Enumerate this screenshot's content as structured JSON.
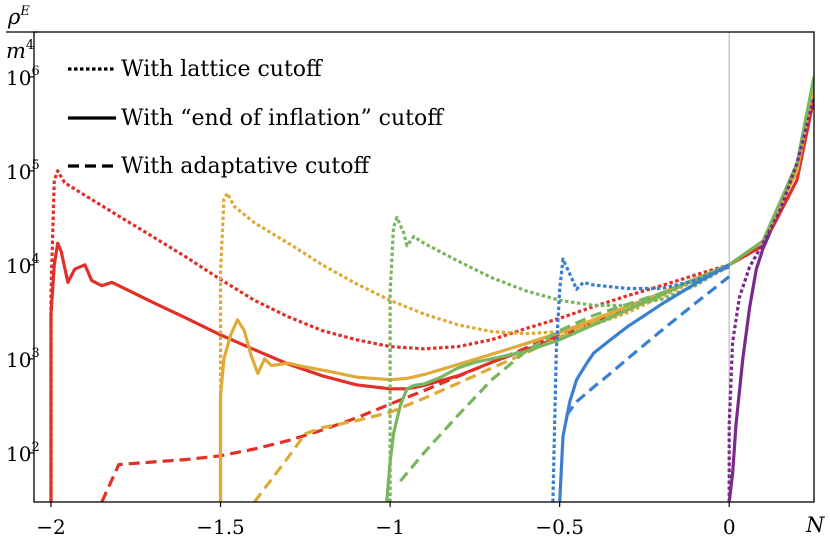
{
  "chart_data": {
    "type": "line",
    "title": "",
    "xlabel": "N",
    "ylabel": "ρ^E / m^4",
    "ylabel_parts": {
      "num_base": "ρ",
      "num_sup": "E",
      "den_base": "m",
      "den_sup": "4"
    },
    "yscale": "log",
    "xlim": [
      -2.05,
      0.25
    ],
    "ylim": [
      30,
      3000000
    ],
    "xticks": [
      {
        "value": -2,
        "label": "−2"
      },
      {
        "value": -1.5,
        "label": "−1.5"
      },
      {
        "value": -1,
        "label": "−1"
      },
      {
        "value": -0.5,
        "label": "−0.5"
      },
      {
        "value": 0,
        "label": "0"
      }
    ],
    "yticks": [
      {
        "value": 100,
        "base": "10",
        "exp": "2"
      },
      {
        "value": 1000,
        "base": "10",
        "exp": "3"
      },
      {
        "value": 10000,
        "base": "10",
        "exp": "4"
      },
      {
        "value": 100000,
        "base": "10",
        "exp": "5"
      },
      {
        "value": 1000000,
        "base": "10",
        "exp": "6"
      }
    ],
    "vline_x": 0,
    "legend": {
      "position": "top-left",
      "entries": [
        {
          "label": "With lattice cutoff",
          "style": "dotted"
        },
        {
          "label": "With “end of inflation” cutoff",
          "style": "solid"
        },
        {
          "label": "With adaptative cutoff",
          "style": "dashed"
        }
      ]
    },
    "series": [
      {
        "name": "red lattice cutoff",
        "color": "#e03028",
        "style": "dotted",
        "points": [
          [
            -2.0,
            30
          ],
          [
            -2.0,
            5000
          ],
          [
            -1.99,
            80000
          ],
          [
            -1.98,
            100000
          ],
          [
            -1.96,
            75000
          ],
          [
            -1.9,
            55000
          ],
          [
            -1.8,
            33000
          ],
          [
            -1.7,
            20000
          ],
          [
            -1.6,
            12000
          ],
          [
            -1.5,
            7000
          ],
          [
            -1.4,
            4200
          ],
          [
            -1.3,
            2800
          ],
          [
            -1.2,
            2000
          ],
          [
            -1.1,
            1600
          ],
          [
            -1.0,
            1350
          ],
          [
            -0.9,
            1280
          ],
          [
            -0.8,
            1350
          ],
          [
            -0.7,
            1600
          ],
          [
            -0.6,
            2100
          ],
          [
            -0.5,
            2700
          ],
          [
            -0.4,
            3600
          ],
          [
            -0.3,
            4700
          ],
          [
            -0.2,
            6000
          ],
          [
            -0.1,
            7800
          ],
          [
            0.0,
            10000
          ]
        ]
      },
      {
        "name": "red end-of-inflation cutoff",
        "color": "#e03028",
        "style": "solid",
        "points": [
          [
            -2.0,
            30
          ],
          [
            -2.0,
            3000
          ],
          [
            -1.99,
            10000
          ],
          [
            -1.98,
            17000
          ],
          [
            -1.97,
            14000
          ],
          [
            -1.95,
            6500
          ],
          [
            -1.93,
            9000
          ],
          [
            -1.9,
            10000
          ],
          [
            -1.88,
            6800
          ],
          [
            -1.85,
            6000
          ],
          [
            -1.82,
            6500
          ],
          [
            -1.8,
            6000
          ],
          [
            -1.7,
            4000
          ],
          [
            -1.6,
            2700
          ],
          [
            -1.5,
            1800
          ],
          [
            -1.4,
            1250
          ],
          [
            -1.3,
            880
          ],
          [
            -1.2,
            660
          ],
          [
            -1.1,
            530
          ],
          [
            -1.0,
            480
          ],
          [
            -0.95,
            480
          ],
          [
            -0.9,
            520
          ],
          [
            -0.8,
            660
          ],
          [
            -0.7,
            920
          ],
          [
            -0.6,
            1250
          ],
          [
            -0.5,
            1700
          ],
          [
            -0.4,
            2400
          ],
          [
            -0.3,
            3400
          ],
          [
            -0.2,
            4800
          ],
          [
            -0.1,
            7000
          ],
          [
            0.0,
            10000
          ],
          [
            0.1,
            16000
          ],
          [
            0.2,
            80000
          ],
          [
            0.25,
            600000
          ]
        ]
      },
      {
        "name": "red adaptative cutoff",
        "color": "#e03028",
        "style": "dashed",
        "points": [
          [
            -1.85,
            30
          ],
          [
            -1.8,
            75
          ],
          [
            -1.7,
            80
          ],
          [
            -1.6,
            85
          ],
          [
            -1.5,
            93
          ],
          [
            -1.4,
            110
          ],
          [
            -1.3,
            135
          ],
          [
            -1.2,
            175
          ],
          [
            -1.1,
            235
          ],
          [
            -1.0,
            330
          ],
          [
            -0.9,
            460
          ],
          [
            -0.8,
            650
          ],
          [
            -0.7,
            920
          ],
          [
            -0.6,
            1300
          ],
          [
            -0.5,
            1850
          ],
          [
            -0.4,
            2600
          ],
          [
            -0.3,
            3600
          ],
          [
            -0.2,
            5000
          ],
          [
            -0.1,
            7000
          ],
          [
            0.0,
            9500
          ]
        ]
      },
      {
        "name": "yellow lattice cutoff",
        "color": "#e0aa3a",
        "style": "dotted",
        "points": [
          [
            -1.5,
            30
          ],
          [
            -1.5,
            8000
          ],
          [
            -1.49,
            50000
          ],
          [
            -1.48,
            58000
          ],
          [
            -1.46,
            42000
          ],
          [
            -1.4,
            28000
          ],
          [
            -1.3,
            17000
          ],
          [
            -1.2,
            10000
          ],
          [
            -1.1,
            6300
          ],
          [
            -1.0,
            4200
          ],
          [
            -0.9,
            3000
          ],
          [
            -0.8,
            2300
          ],
          [
            -0.7,
            1950
          ],
          [
            -0.6,
            1850
          ],
          [
            -0.5,
            1950
          ],
          [
            -0.4,
            2300
          ],
          [
            -0.3,
            3100
          ],
          [
            -0.2,
            4600
          ],
          [
            -0.1,
            6800
          ],
          [
            0.0,
            10000
          ]
        ]
      },
      {
        "name": "yellow end-of-inflation cutoff",
        "color": "#e0aa3a",
        "style": "solid",
        "points": [
          [
            -1.5,
            30
          ],
          [
            -1.5,
            400
          ],
          [
            -1.49,
            1000
          ],
          [
            -1.47,
            1800
          ],
          [
            -1.45,
            2600
          ],
          [
            -1.43,
            2000
          ],
          [
            -1.41,
            1100
          ],
          [
            -1.39,
            700
          ],
          [
            -1.37,
            1000
          ],
          [
            -1.35,
            850
          ],
          [
            -1.3,
            900
          ],
          [
            -1.25,
            820
          ],
          [
            -1.2,
            760
          ],
          [
            -1.15,
            700
          ],
          [
            -1.1,
            640
          ],
          [
            -1.0,
            600
          ],
          [
            -0.95,
            620
          ],
          [
            -0.9,
            680
          ],
          [
            -0.8,
            870
          ],
          [
            -0.7,
            1120
          ],
          [
            -0.6,
            1450
          ],
          [
            -0.5,
            1900
          ],
          [
            -0.4,
            2600
          ],
          [
            -0.3,
            3600
          ],
          [
            -0.2,
            5000
          ],
          [
            -0.1,
            7100
          ],
          [
            0.0,
            10000
          ],
          [
            0.1,
            18000
          ],
          [
            0.2,
            100000
          ],
          [
            0.25,
            800000
          ]
        ]
      },
      {
        "name": "yellow adaptative cutoff",
        "color": "#e0aa3a",
        "style": "dashed",
        "points": [
          [
            -1.4,
            30
          ],
          [
            -1.3,
            90
          ],
          [
            -1.25,
            160
          ],
          [
            -1.2,
            185
          ],
          [
            -1.1,
            220
          ],
          [
            -1.0,
            270
          ],
          [
            -0.9,
            380
          ],
          [
            -0.8,
            550
          ],
          [
            -0.7,
            800
          ],
          [
            -0.6,
            1150
          ],
          [
            -0.5,
            1700
          ],
          [
            -0.4,
            2500
          ],
          [
            -0.3,
            3500
          ],
          [
            -0.2,
            5000
          ],
          [
            -0.1,
            7000
          ],
          [
            0.0,
            9800
          ]
        ]
      },
      {
        "name": "green lattice cutoff",
        "color": "#78b660",
        "style": "dotted",
        "points": [
          [
            -1.0,
            30
          ],
          [
            -1.0,
            5000
          ],
          [
            -0.99,
            25000
          ],
          [
            -0.98,
            32000
          ],
          [
            -0.96,
            22000
          ],
          [
            -0.95,
            16000
          ],
          [
            -0.93,
            20000
          ],
          [
            -0.9,
            17000
          ],
          [
            -0.8,
            11000
          ],
          [
            -0.7,
            7300
          ],
          [
            -0.6,
            5300
          ],
          [
            -0.5,
            4200
          ],
          [
            -0.4,
            3700
          ],
          [
            -0.3,
            3700
          ],
          [
            -0.2,
            4300
          ],
          [
            -0.1,
            6000
          ],
          [
            0.0,
            9800
          ]
        ]
      },
      {
        "name": "green end-of-inflation cutoff",
        "color": "#78b660",
        "style": "solid",
        "points": [
          [
            -1.01,
            30
          ],
          [
            -1.0,
            80
          ],
          [
            -0.99,
            160
          ],
          [
            -0.97,
            320
          ],
          [
            -0.95,
            480
          ],
          [
            -0.93,
            520
          ],
          [
            -0.9,
            540
          ],
          [
            -0.85,
            640
          ],
          [
            -0.8,
            800
          ],
          [
            -0.75,
            920
          ],
          [
            -0.7,
            1000
          ],
          [
            -0.6,
            1200
          ],
          [
            -0.5,
            1600
          ],
          [
            -0.4,
            2300
          ],
          [
            -0.3,
            3300
          ],
          [
            -0.2,
            4800
          ],
          [
            -0.1,
            7000
          ],
          [
            0.0,
            10000
          ],
          [
            0.1,
            18000
          ],
          [
            0.2,
            120000
          ],
          [
            0.25,
            1000000
          ]
        ]
      },
      {
        "name": "green adaptative cutoff",
        "color": "#78b660",
        "style": "dashed",
        "points": [
          [
            -0.97,
            50
          ],
          [
            -0.9,
            100
          ],
          [
            -0.8,
            250
          ],
          [
            -0.7,
            600
          ],
          [
            -0.6,
            1200
          ],
          [
            -0.5,
            2000
          ],
          [
            -0.4,
            2900
          ],
          [
            -0.3,
            3800
          ],
          [
            -0.2,
            5000
          ],
          [
            -0.1,
            6900
          ],
          [
            0.0,
            9600
          ]
        ]
      },
      {
        "name": "blue lattice cutoff",
        "color": "#3a7fd0",
        "style": "dotted",
        "points": [
          [
            -0.52,
            30
          ],
          [
            -0.51,
            1200
          ],
          [
            -0.5,
            5500
          ],
          [
            -0.49,
            11500
          ],
          [
            -0.47,
            8000
          ],
          [
            -0.45,
            5500
          ],
          [
            -0.43,
            6500
          ],
          [
            -0.4,
            6100
          ],
          [
            -0.3,
            5600
          ],
          [
            -0.2,
            5600
          ],
          [
            -0.1,
            6800
          ],
          [
            0.0,
            9500
          ]
        ]
      },
      {
        "name": "blue end-of-inflation cutoff",
        "color": "#3a7fd0",
        "style": "solid",
        "points": [
          [
            -0.5,
            30
          ],
          [
            -0.49,
            150
          ],
          [
            -0.47,
            350
          ],
          [
            -0.45,
            600
          ],
          [
            -0.42,
            900
          ],
          [
            -0.4,
            1150
          ],
          [
            -0.35,
            1600
          ],
          [
            -0.3,
            2200
          ],
          [
            -0.2,
            3800
          ],
          [
            -0.1,
            6300
          ],
          [
            0.0,
            10000
          ]
        ]
      },
      {
        "name": "blue adaptative cutoff",
        "color": "#3a7fd0",
        "style": "dashed",
        "points": [
          [
            -0.48,
            250
          ],
          [
            -0.45,
            350
          ],
          [
            -0.4,
            500
          ],
          [
            -0.35,
            700
          ],
          [
            -0.3,
            1000
          ],
          [
            -0.2,
            2000
          ],
          [
            -0.1,
            3900
          ],
          [
            0.0,
            7500
          ]
        ]
      },
      {
        "name": "purple lattice cutoff",
        "color": "#7a2a8a",
        "style": "dotted",
        "points": [
          [
            0.0,
            30
          ],
          [
            0.0,
            200
          ],
          [
            0.01,
            1500
          ],
          [
            0.03,
            4500
          ],
          [
            0.06,
            9500
          ],
          [
            0.1,
            17000
          ],
          [
            0.15,
            38000
          ],
          [
            0.2,
            120000
          ],
          [
            0.25,
            600000
          ]
        ]
      },
      {
        "name": "purple end-of-inflation cutoff",
        "color": "#7a2a8a",
        "style": "solid",
        "points": [
          [
            0.0,
            30
          ],
          [
            0.01,
            60
          ],
          [
            0.02,
            200
          ],
          [
            0.04,
            1000
          ],
          [
            0.06,
            3500
          ],
          [
            0.08,
            9000
          ],
          [
            0.1,
            15000
          ],
          [
            0.12,
            22000
          ]
        ]
      }
    ]
  }
}
